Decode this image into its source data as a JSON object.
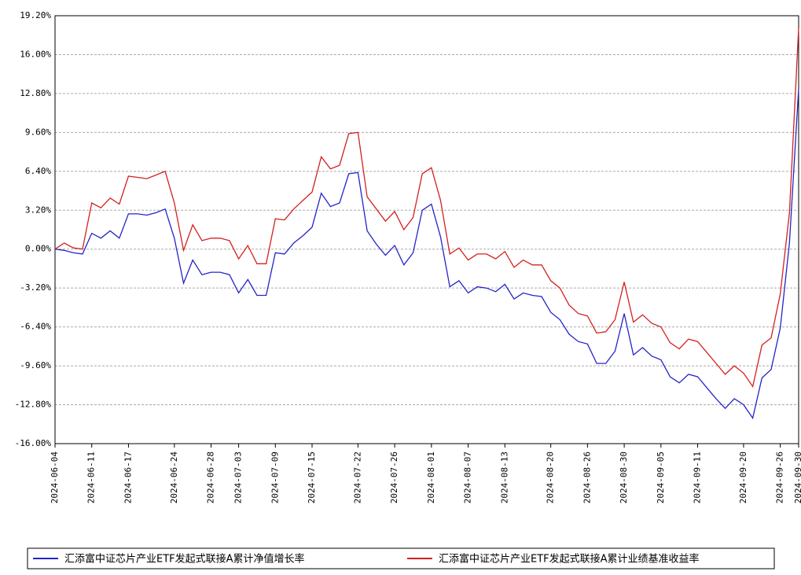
{
  "chart_data": {
    "type": "line",
    "categories": [
      "2024-06-04",
      null,
      null,
      null,
      "2024-06-11",
      null,
      null,
      null,
      "2024-06-17",
      null,
      null,
      null,
      null,
      "2024-06-24",
      null,
      null,
      null,
      "2024-06-28",
      null,
      null,
      "2024-07-03",
      null,
      null,
      null,
      "2024-07-09",
      null,
      null,
      null,
      "2024-07-15",
      null,
      null,
      null,
      null,
      "2024-07-22",
      null,
      null,
      null,
      "2024-07-26",
      null,
      null,
      null,
      "2024-08-01",
      null,
      null,
      null,
      "2024-08-07",
      null,
      null,
      null,
      "2024-08-13",
      null,
      null,
      null,
      null,
      "2024-08-20",
      null,
      null,
      null,
      "2024-08-26",
      null,
      null,
      null,
      "2024-08-30",
      null,
      null,
      null,
      "2024-09-05",
      null,
      null,
      null,
      "2024-09-11",
      null,
      null,
      null,
      null,
      "2024-09-20",
      null,
      null,
      null,
      "2024-09-26",
      null,
      "2024-09-30"
    ],
    "series": [
      {
        "name": "汇添富中证芯片产业ETF发起式联接A累计净值增长率",
        "color": "#2424c8",
        "values": [
          0,
          -0.1,
          -0.3,
          -0.4,
          1.3,
          0.9,
          1.5,
          0.9,
          2.9,
          2.9,
          2.8,
          3.0,
          3.3,
          0.9,
          -2.8,
          -0.9,
          -2.1,
          -1.9,
          -1.9,
          -2.1,
          -3.6,
          -2.5,
          -3.8,
          -3.8,
          -0.3,
          -0.4,
          0.5,
          1.1,
          1.8,
          4.6,
          3.5,
          3.8,
          6.2,
          6.3,
          1.5,
          0.4,
          -0.5,
          0.3,
          -1.3,
          -0.3,
          3.2,
          3.7,
          1.0,
          -3.1,
          -2.6,
          -3.6,
          -3.1,
          -3.2,
          -3.5,
          -2.9,
          -4.1,
          -3.6,
          -3.8,
          -3.9,
          -5.2,
          -5.8,
          -7.0,
          -7.6,
          -7.8,
          -9.4,
          -9.4,
          -8.4,
          -5.3,
          -8.7,
          -8.1,
          -8.8,
          -9.1,
          -10.5,
          -11.0,
          -10.3,
          -10.5,
          -11.4,
          -12.3,
          -13.1,
          -12.3,
          -12.8,
          -13.9,
          -10.6,
          -9.9,
          -6.5,
          0.5,
          13.2
        ]
      },
      {
        "name": "汇添富中证芯片产业ETF发起式联接A累计业绩基准收益率",
        "color": "#d42020",
        "values": [
          0,
          0.5,
          0.1,
          0.0,
          3.8,
          3.4,
          4.2,
          3.7,
          6.0,
          5.9,
          5.8,
          6.1,
          6.4,
          3.8,
          -0.1,
          2.0,
          0.7,
          0.9,
          0.9,
          0.7,
          -0.8,
          0.3,
          -1.2,
          -1.2,
          2.5,
          2.4,
          3.3,
          4.0,
          4.7,
          7.6,
          6.6,
          6.9,
          9.5,
          9.6,
          4.3,
          3.3,
          2.3,
          3.1,
          1.6,
          2.6,
          6.2,
          6.7,
          4.0,
          -0.4,
          0.1,
          -0.9,
          -0.4,
          -0.4,
          -0.8,
          -0.2,
          -1.5,
          -0.9,
          -1.3,
          -1.3,
          -2.6,
          -3.2,
          -4.6,
          -5.3,
          -5.5,
          -6.9,
          -6.8,
          -5.8,
          -2.7,
          -6.0,
          -5.4,
          -6.1,
          -6.4,
          -7.7,
          -8.2,
          -7.4,
          -7.6,
          -8.5,
          -9.4,
          -10.3,
          -9.6,
          -10.2,
          -11.3,
          -7.9,
          -7.3,
          -3.7,
          3.0,
          18.2
        ]
      }
    ],
    "ylim": [
      -16,
      19.2
    ],
    "yticks": [
      {
        "value": 19.2,
        "label": "19.20%"
      },
      {
        "value": 16,
        "label": "16.00%"
      },
      {
        "value": 12.8,
        "label": "12.80%"
      },
      {
        "value": 9.6,
        "label": "9.60%"
      },
      {
        "value": 6.4,
        "label": "6.40%"
      },
      {
        "value": 3.2,
        "label": "3.20%"
      },
      {
        "value": 0,
        "label": "0.00%"
      },
      {
        "value": -3.2,
        "label": "-3.20%"
      },
      {
        "value": -6.4,
        "label": "-6.40%"
      },
      {
        "value": -9.6,
        "label": "-9.60%"
      },
      {
        "value": -12.8,
        "label": "-12.80%"
      },
      {
        "value": -16,
        "label": "-16.00%"
      }
    ],
    "grid": true
  }
}
